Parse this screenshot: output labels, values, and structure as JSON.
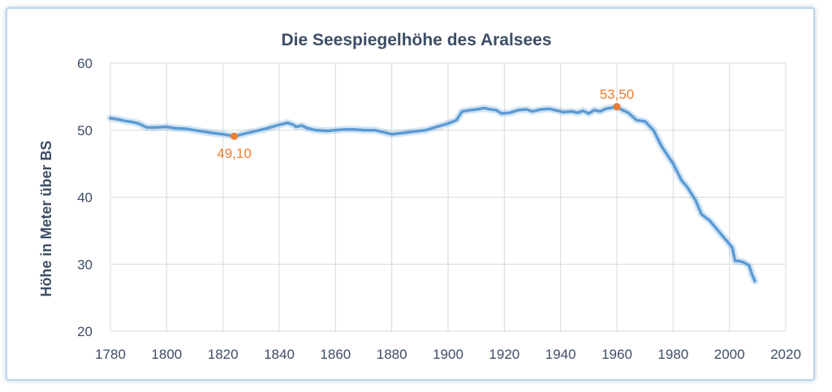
{
  "chart_data": {
    "type": "line",
    "title": "Die Seespiegelhöhe des Aralsees",
    "xlabel": "",
    "ylabel": "Höhe in Meter über BS",
    "xlim": [
      1780,
      2020
    ],
    "ylim": [
      20,
      60
    ],
    "x_ticks": [
      1780,
      1800,
      1820,
      1840,
      1860,
      1880,
      1900,
      1920,
      1940,
      1960,
      1980,
      2000,
      2020
    ],
    "y_ticks": [
      20,
      30,
      40,
      50,
      60
    ],
    "grid": true,
    "legend": "none",
    "series": [
      {
        "color": "#5b9bd5",
        "points": [
          [
            1780,
            51.8
          ],
          [
            1783,
            51.6
          ],
          [
            1785,
            51.4
          ],
          [
            1788,
            51.2
          ],
          [
            1790,
            51.0
          ],
          [
            1793,
            50.4
          ],
          [
            1796,
            50.4
          ],
          [
            1800,
            50.5
          ],
          [
            1803,
            50.3
          ],
          [
            1807,
            50.2
          ],
          [
            1810,
            50.0
          ],
          [
            1813,
            49.8
          ],
          [
            1816,
            49.6
          ],
          [
            1820,
            49.4
          ],
          [
            1824,
            49.1
          ],
          [
            1827,
            49.4
          ],
          [
            1830,
            49.7
          ],
          [
            1835,
            50.2
          ],
          [
            1840,
            50.8
          ],
          [
            1843,
            51.1
          ],
          [
            1845,
            50.8
          ],
          [
            1846,
            50.5
          ],
          [
            1848,
            50.7
          ],
          [
            1850,
            50.3
          ],
          [
            1853,
            50.0
          ],
          [
            1857,
            49.9
          ],
          [
            1860,
            50.0
          ],
          [
            1863,
            50.1
          ],
          [
            1867,
            50.1
          ],
          [
            1870,
            50.0
          ],
          [
            1874,
            50.0
          ],
          [
            1877,
            49.7
          ],
          [
            1880,
            49.4
          ],
          [
            1884,
            49.6
          ],
          [
            1888,
            49.8
          ],
          [
            1892,
            50.0
          ],
          [
            1896,
            50.5
          ],
          [
            1900,
            51.0
          ],
          [
            1903,
            51.5
          ],
          [
            1905,
            52.8
          ],
          [
            1908,
            53.0
          ],
          [
            1910,
            53.1
          ],
          [
            1913,
            53.3
          ],
          [
            1915,
            53.1
          ],
          [
            1917,
            53.0
          ],
          [
            1919,
            52.5
          ],
          [
            1922,
            52.6
          ],
          [
            1925,
            53.0
          ],
          [
            1928,
            53.1
          ],
          [
            1930,
            52.8
          ],
          [
            1933,
            53.1
          ],
          [
            1936,
            53.2
          ],
          [
            1938,
            53.0
          ],
          [
            1941,
            52.7
          ],
          [
            1944,
            52.8
          ],
          [
            1946,
            52.6
          ],
          [
            1948,
            52.9
          ],
          [
            1950,
            52.5
          ],
          [
            1952,
            53.0
          ],
          [
            1954,
            52.8
          ],
          [
            1956,
            53.2
          ],
          [
            1960,
            53.5
          ],
          [
            1962,
            53.0
          ],
          [
            1964,
            52.6
          ],
          [
            1967,
            51.5
          ],
          [
            1970,
            51.3
          ],
          [
            1973,
            50.0
          ],
          [
            1976,
            47.5
          ],
          [
            1980,
            45.0
          ],
          [
            1983,
            42.5
          ],
          [
            1985,
            41.5
          ],
          [
            1988,
            39.5
          ],
          [
            1990,
            37.5
          ],
          [
            1993,
            36.5
          ],
          [
            1996,
            35.0
          ],
          [
            1999,
            33.5
          ],
          [
            2001,
            32.5
          ],
          [
            2002,
            30.5
          ],
          [
            2003,
            30.5
          ],
          [
            2005,
            30.3
          ],
          [
            2007,
            29.8
          ],
          [
            2008,
            28.5
          ],
          [
            2009,
            27.5
          ]
        ]
      }
    ],
    "annotations": [
      {
        "x": 1824,
        "y": 49.1,
        "label": "49,10",
        "position": "below"
      },
      {
        "x": 1960,
        "y": 53.5,
        "label": "53,50",
        "position": "above"
      }
    ]
  }
}
